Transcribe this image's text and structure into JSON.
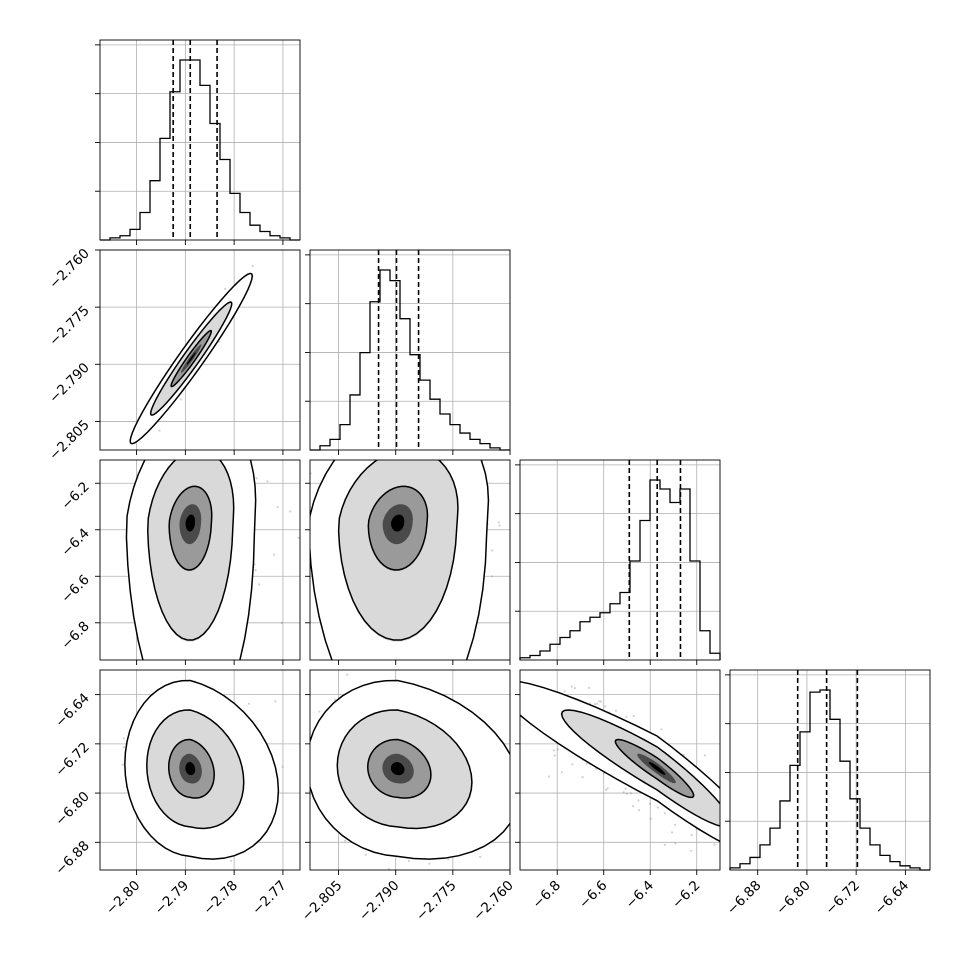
{
  "chart_data": {
    "type": "corner",
    "title": "",
    "parameters": [
      {
        "range": [
          -2.8075,
          -2.7665
        ],
        "ticks": [
          -2.8,
          -2.79,
          -2.78,
          -2.77
        ],
        "tick_labels": [
          "−2.80",
          "−2.79",
          "−2.78",
          "−2.77"
        ]
      },
      {
        "range": [
          -2.8125,
          -2.76
        ],
        "ticks": [
          -2.805,
          -2.79,
          -2.775,
          -2.76
        ],
        "tick_labels": [
          "−2.805",
          "−2.790",
          "−2.775",
          "−2.760"
        ]
      },
      {
        "range": [
          -6.96,
          -6.1
        ],
        "ticks": [
          -6.8,
          -6.6,
          -6.4,
          -6.2
        ],
        "tick_labels": [
          "−6.8",
          "−6.6",
          "−6.4",
          "−6.2"
        ]
      },
      {
        "range": [
          -6.925,
          -6.6
        ],
        "ticks": [
          -6.88,
          -6.8,
          -6.72,
          -6.64
        ],
        "tick_labels": [
          "−6.88",
          "−6.80",
          "−6.72",
          "−6.64"
        ]
      }
    ],
    "marginals": [
      {
        "quantiles": [
          -2.7925,
          -2.789,
          -2.7835
        ],
        "counts": [
          0,
          1,
          2,
          5,
          13,
          28,
          48,
          70,
          85,
          85,
          73,
          55,
          38,
          22,
          13,
          7,
          4,
          2,
          1,
          0
        ]
      },
      {
        "quantiles": [
          -2.7945,
          -2.7898,
          -2.784
        ],
        "counts": [
          0,
          2,
          5,
          12,
          26,
          46,
          70,
          85,
          80,
          62,
          45,
          33,
          24,
          17,
          12,
          8,
          5,
          3,
          1,
          0
        ]
      },
      {
        "quantiles": [
          -6.49,
          -6.37,
          -6.27
        ],
        "counts": [
          1,
          2,
          4,
          7,
          10,
          13,
          17,
          19,
          21,
          25,
          30,
          44,
          62,
          80,
          76,
          70,
          76,
          44,
          13,
          3
        ]
      },
      {
        "quantiles": [
          -6.815,
          -6.768,
          -6.718
        ],
        "counts": [
          1,
          3,
          6,
          12,
          20,
          33,
          50,
          66,
          85,
          86,
          72,
          52,
          34,
          20,
          12,
          7,
          4,
          2,
          1,
          0
        ]
      }
    ],
    "joint": [
      {
        "row": 1,
        "col": 0,
        "center": [
          -2.7888,
          -2.7885
        ],
        "sigma": [
          0.0042,
          0.0075
        ],
        "rho": 0.97,
        "shape": "gaussian"
      },
      {
        "row": 2,
        "col": 0,
        "center": [
          -2.789,
          -6.37
        ],
        "sigma": [
          0.0045,
          0.16
        ],
        "rho": 0.2,
        "shape": "skew-tail"
      },
      {
        "row": 2,
        "col": 1,
        "center": [
          -2.7895,
          -6.37
        ],
        "sigma": [
          0.008,
          0.16
        ],
        "rho": 0.2,
        "shape": "skew-tail"
      },
      {
        "row": 3,
        "col": 0,
        "center": [
          -2.789,
          -6.76
        ],
        "sigma": [
          0.0045,
          0.048
        ],
        "rho": -0.05,
        "shape": "gaussian-skew"
      },
      {
        "row": 3,
        "col": 1,
        "center": [
          -2.7895,
          -6.76
        ],
        "sigma": [
          0.008,
          0.048
        ],
        "rho": -0.05,
        "shape": "gaussian-skew"
      },
      {
        "row": 3,
        "col": 2,
        "center": [
          -6.37,
          -6.76
        ],
        "sigma": [
          0.16,
          0.048
        ],
        "rho": -0.93,
        "shape": "banana"
      }
    ],
    "levels": [
      0.39,
      0.86,
      0.99
    ],
    "colors": {
      "line": "#000000",
      "scatter": "#7a7a7a",
      "grid": "#b0b0b0"
    }
  }
}
